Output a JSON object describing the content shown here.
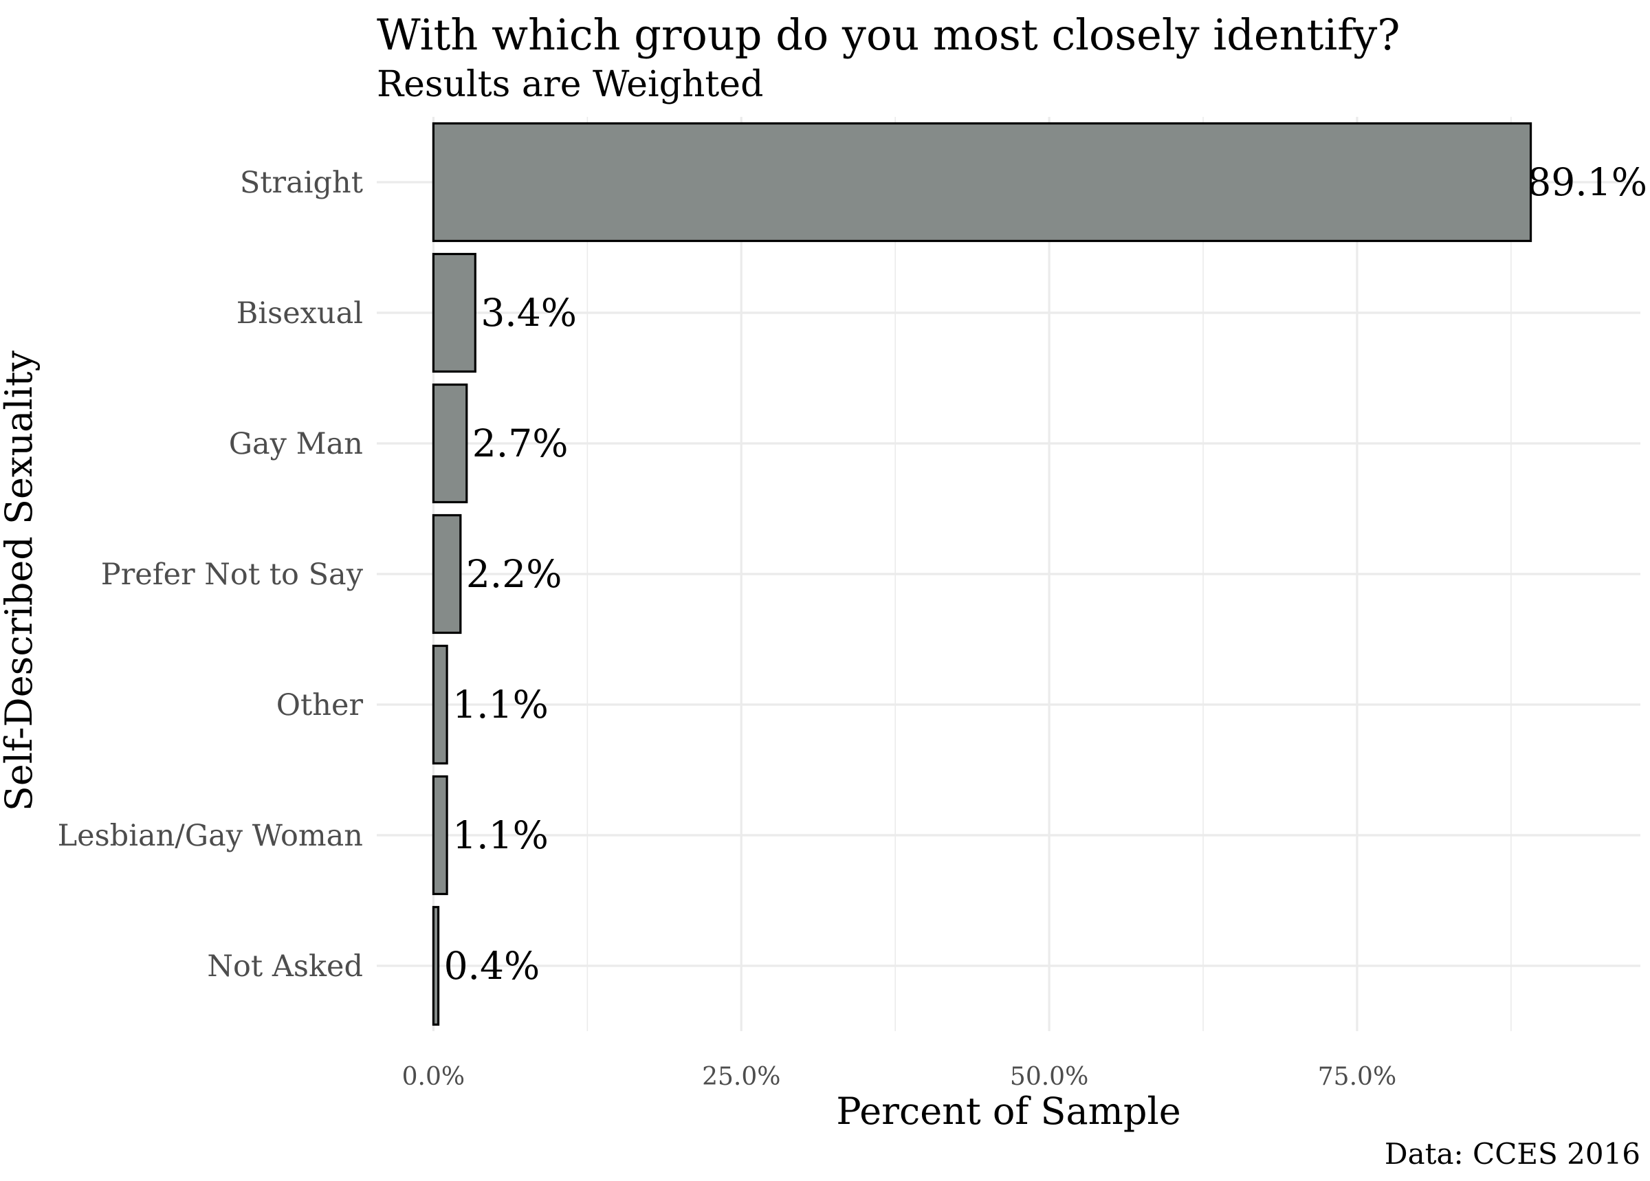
{
  "chart_data": {
    "type": "bar",
    "orientation": "horizontal",
    "title": "With which group do you most closely identify?",
    "subtitle": "Results are Weighted",
    "xlabel": "Percent of Sample",
    "ylabel": "Self-Described Sexuality",
    "caption": "Data: CCES 2016",
    "categories": [
      "Straight",
      "Bisexual",
      "Gay Man",
      "Prefer Not to Say",
      "Other",
      "Lesbian/Gay Woman",
      "Not Asked"
    ],
    "values": [
      89.1,
      3.4,
      2.7,
      2.2,
      1.1,
      1.1,
      0.4
    ],
    "data_labels": [
      "89.1%",
      "3.4%",
      "2.7%",
      "2.2%",
      "1.1%",
      "1.1%",
      "0.4%"
    ],
    "x_ticks": [
      0,
      25,
      50,
      75
    ],
    "x_tick_labels": [
      "0.0%",
      "25.0%",
      "50.0%",
      "75.0%"
    ],
    "xlim": [
      -4.6,
      98.0
    ],
    "grid": true,
    "legend": "none",
    "colors": {
      "bar_fill": "#858b89",
      "bar_outline": "#000000",
      "grid": "#ebebeb"
    }
  }
}
